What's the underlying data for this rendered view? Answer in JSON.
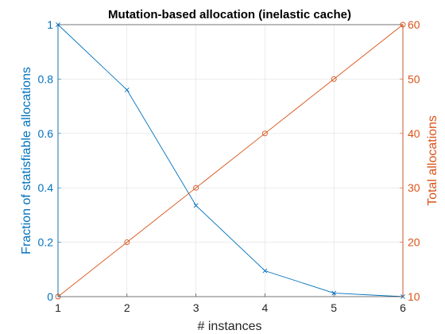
{
  "chart_data": {
    "type": "line",
    "title": "Mutation-based allocation (inelastic cache)",
    "xlabel": "# instances",
    "ylabel_left": "Fraction of statisfiable allocations",
    "ylabel_right": "Total allocations",
    "x": [
      1,
      2,
      3,
      4,
      5,
      6
    ],
    "xlim": [
      1,
      6
    ],
    "ylim_left": [
      0,
      1
    ],
    "ylim_right": [
      10,
      60
    ],
    "x_ticks": [
      "1",
      "2",
      "3",
      "4",
      "5",
      "6"
    ],
    "y_ticks_left": [
      "0",
      "0.2",
      "0.4",
      "0.6",
      "0.8",
      "1"
    ],
    "y_ticks_right": [
      "10",
      "20",
      "30",
      "40",
      "50",
      "60"
    ],
    "grid": true,
    "series": [
      {
        "axis": "left",
        "marker": "x",
        "color": "#0072BD",
        "values": [
          1.0,
          0.76,
          0.335,
          0.095,
          0.013,
          0.0
        ]
      },
      {
        "axis": "right",
        "marker": "o",
        "color": "#D95319",
        "values": [
          10,
          20,
          30,
          40,
          50,
          60
        ]
      }
    ]
  }
}
